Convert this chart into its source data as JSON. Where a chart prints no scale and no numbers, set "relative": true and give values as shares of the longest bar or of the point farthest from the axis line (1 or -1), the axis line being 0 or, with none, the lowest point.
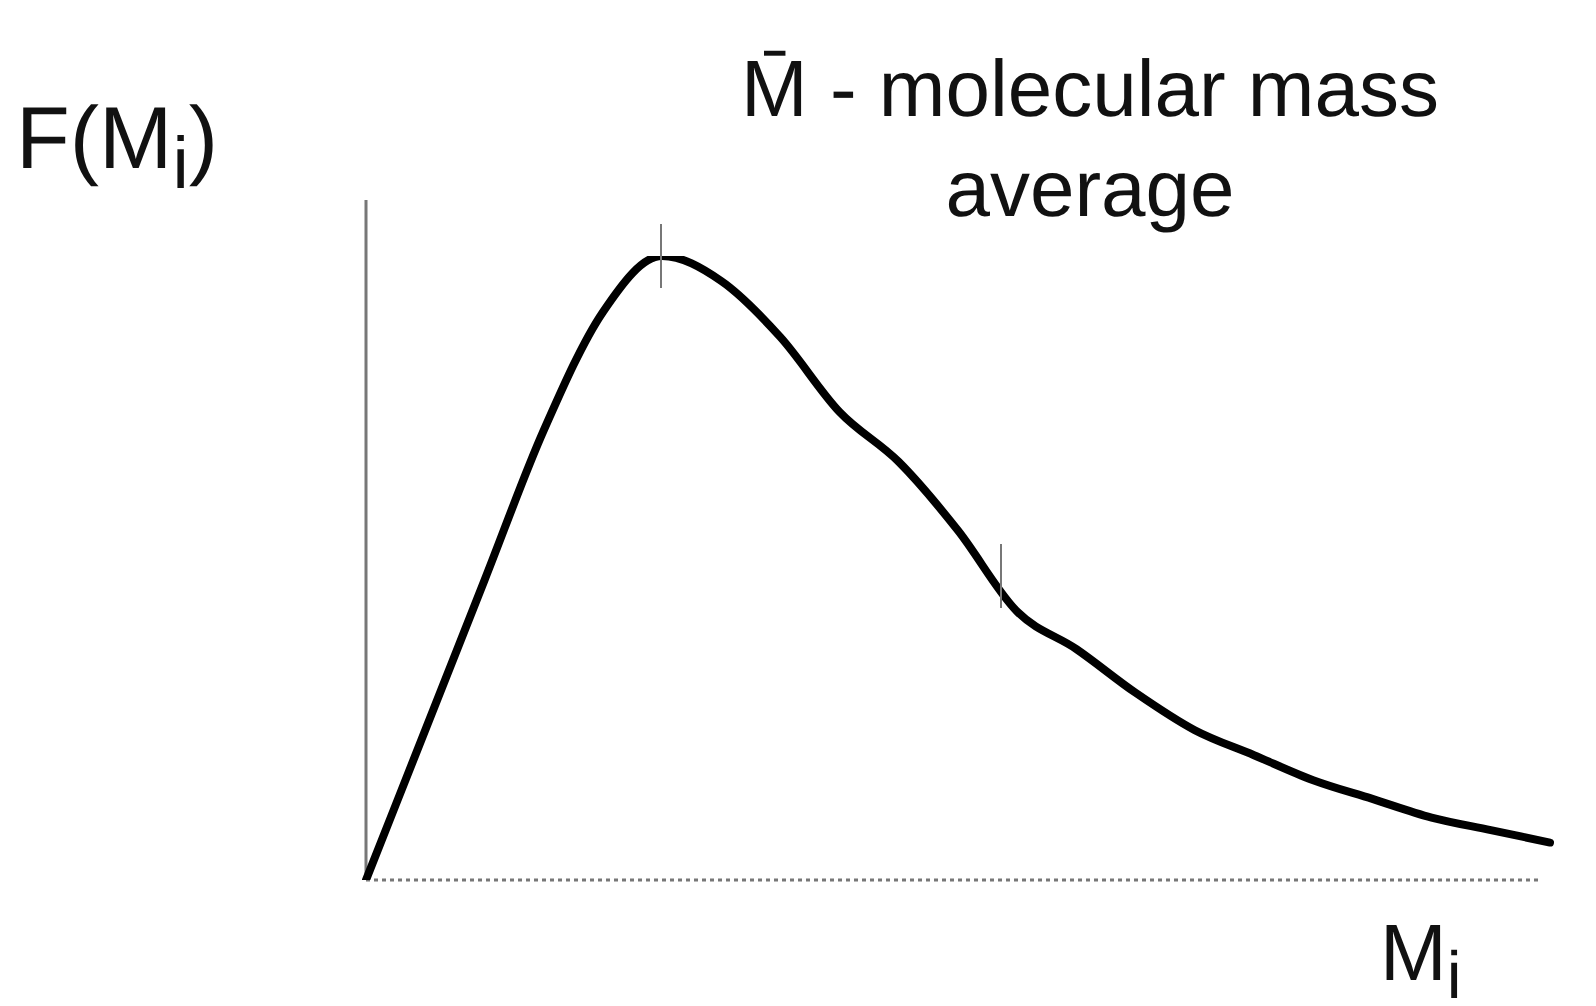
{
  "chart_data": {
    "type": "line",
    "relative": true,
    "ylabel": "F(M$_{i}$)",
    "xlabel": "M$_{i}$",
    "annotations": [
      "M̄ - molecular mass average"
    ],
    "categories": [
      null,
      null,
      null,
      null,
      null,
      null,
      null,
      null,
      null,
      null,
      null,
      null,
      null,
      null,
      null,
      null,
      null,
      null,
      null,
      null,
      null
    ],
    "values": [
      0,
      0.24,
      0.48,
      0.72,
      0.91,
      1,
      0.96,
      0.87,
      0.75,
      0.67,
      0.56,
      0.43,
      0.37,
      0.3,
      0.24,
      0.2,
      0.16,
      0.13,
      0.1,
      0.08,
      0.06
    ],
    "color": "#000000",
    "marker": "none",
    "legend": false
  }
}
